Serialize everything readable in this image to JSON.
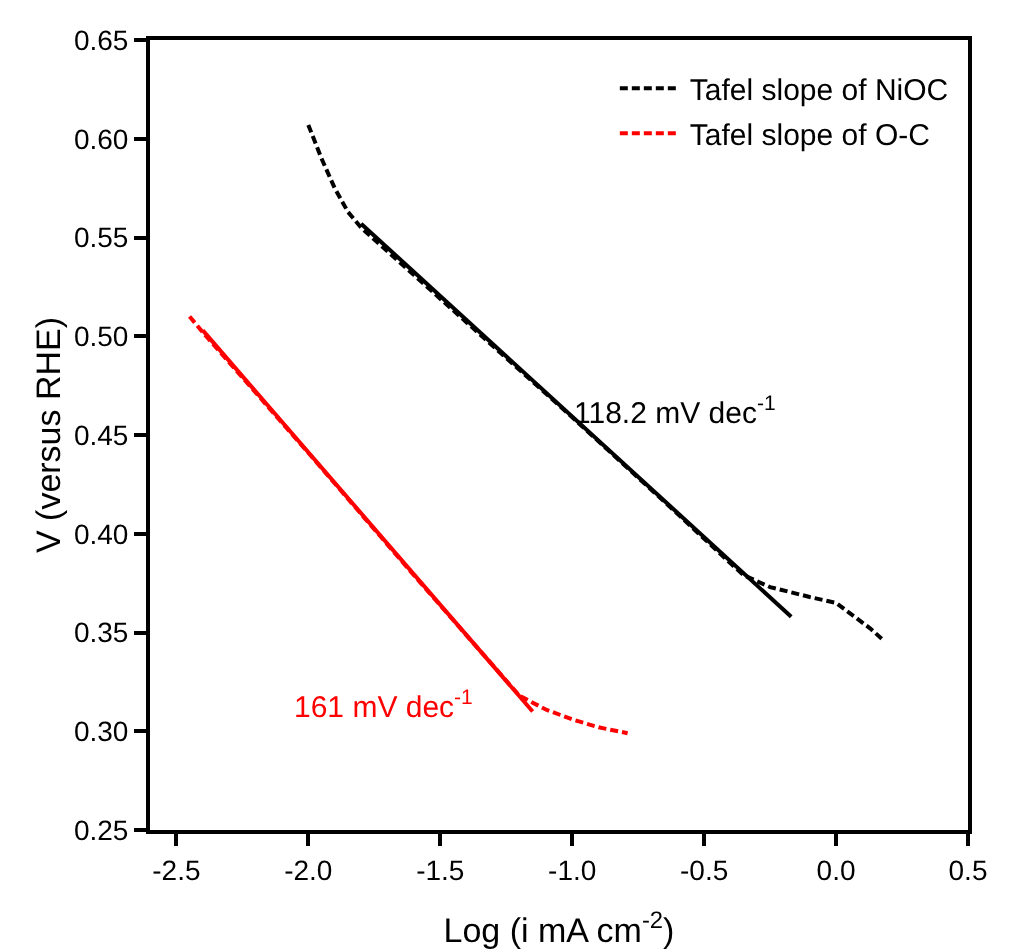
{
  "chart_data": {
    "type": "line",
    "xlabel": "Log (i mA cm$^{-2}$)",
    "ylabel": "V (versus RHE)",
    "xlim": [
      -2.6,
      0.5
    ],
    "ylim": [
      0.25,
      0.65
    ],
    "xticks": [
      -2.5,
      {
        "value": -2,
        "label": "-2.0"
      },
      -1.5,
      {
        "value": -1,
        "label": "-1.0"
      },
      -0.5,
      {
        "value": 0,
        "label": "0.0"
      },
      0.5
    ],
    "yticks": [
      0.25,
      {
        "value": 0.3,
        "label": "0.30"
      },
      0.35,
      {
        "value": 0.4,
        "label": "0.40"
      },
      0.45,
      {
        "value": 0.5,
        "label": "0.50"
      },
      0.55,
      {
        "value": 0.6,
        "label": "0.60"
      },
      0.65
    ],
    "grid": false,
    "legend": "top right",
    "series": [
      {
        "name": "Tafel slope of NiOC",
        "color": "#000000",
        "line_style": "dashed",
        "x": [
          -2.0,
          -1.95,
          -1.9,
          -1.85,
          -1.8,
          -1.4,
          -1.0,
          -0.6,
          -0.4,
          -0.35,
          -0.25,
          -0.1,
          0.0,
          0.08,
          0.13,
          0.18
        ],
        "values": [
          0.607,
          0.59,
          0.575,
          0.563,
          0.555,
          0.507,
          0.459,
          0.41,
          0.385,
          0.379,
          0.373,
          0.368,
          0.365,
          0.357,
          0.352,
          0.346
        ]
      },
      {
        "name": "Tafel slope of O-C",
        "color": "#ff0000",
        "line_style": "dashed",
        "x": [
          -2.45,
          -2.4,
          -2.0,
          -1.6,
          -1.2,
          -1.1,
          -1.0,
          -0.9,
          -0.79
        ],
        "values": [
          0.51,
          0.502,
          0.441,
          0.379,
          0.318,
          0.311,
          0.306,
          0.302,
          0.299
        ]
      },
      {
        "color": "#000000",
        "line_style": "solid",
        "x": [
          -1.8,
          -0.17
        ],
        "values": [
          0.557,
          0.358
        ]
      },
      {
        "color": "#ff0000",
        "line_style": "solid",
        "x": [
          -2.4,
          -1.15
        ],
        "values": [
          0.503,
          0.31
        ]
      }
    ],
    "annotations": [
      "118.2 mV dec$^{-1}$",
      "161 mV dec$^{-1}$"
    ]
  }
}
